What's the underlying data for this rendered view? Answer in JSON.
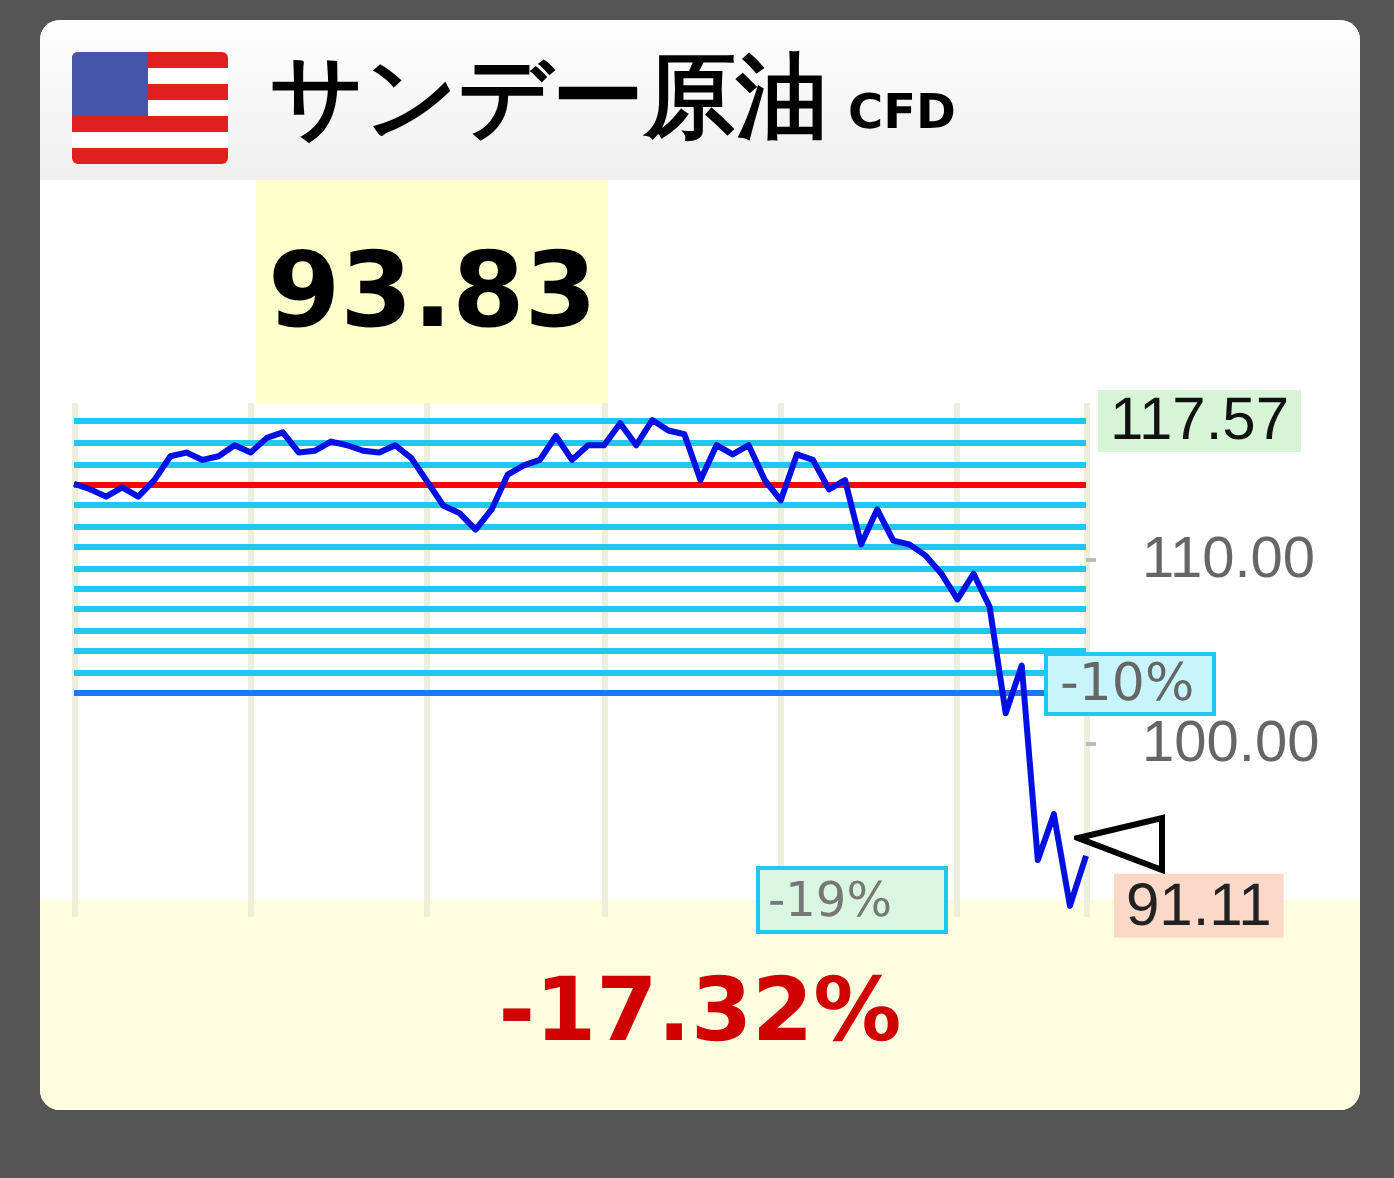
{
  "chart_data": {
    "type": "line",
    "title": "サンデー原油",
    "subtitle": "CFD",
    "categories": [
      null,
      null,
      null,
      null,
      null,
      null,
      null,
      null,
      null,
      null,
      null,
      null,
      null,
      null,
      null,
      null,
      null,
      null,
      null,
      null,
      null,
      null,
      null,
      null,
      null,
      null,
      null,
      null,
      null,
      null,
      null,
      null,
      null,
      null,
      null,
      null,
      null,
      null,
      null,
      null,
      null,
      null,
      null,
      null,
      null,
      null,
      null,
      null,
      null,
      null,
      null,
      null,
      null,
      null,
      null,
      null,
      null,
      null,
      null,
      null,
      null,
      null,
      null,
      null
    ],
    "series": [
      {
        "color": "#0010e0",
        "values": [
          114.1,
          113.8,
          113.4,
          113.9,
          113.4,
          114.3,
          115.6,
          115.8,
          115.4,
          115.6,
          116.2,
          115.8,
          116.6,
          116.9,
          115.8,
          115.9,
          116.4,
          116.2,
          115.9,
          115.8,
          116.2,
          115.5,
          114.2,
          112.9,
          112.5,
          111.6,
          112.7,
          114.6,
          115.1,
          115.4,
          116.7,
          115.4,
          116.2,
          116.2,
          117.4,
          116.2,
          117.57,
          117.0,
          116.8,
          114.3,
          116.2,
          115.7,
          116.2,
          114.3,
          113.2,
          115.7,
          115.4,
          113.8,
          114.3,
          110.8,
          112.7,
          111.0,
          110.8,
          110.2,
          109.2,
          107.8,
          109.2,
          107.4,
          101.6,
          104.2,
          93.6,
          96.1,
          91.11,
          93.83
        ],
        "value_labels": [
          null,
          null,
          null,
          null,
          null,
          null,
          null,
          null,
          null,
          null,
          null,
          null,
          null,
          null,
          null,
          null,
          null,
          null,
          null,
          null,
          null,
          null,
          null,
          null,
          null,
          null,
          null,
          null,
          null,
          null,
          null,
          null,
          null,
          null,
          null,
          null,
          null,
          null,
          null,
          null,
          null,
          null,
          null,
          null,
          null,
          null,
          null,
          null,
          null,
          null,
          null,
          null,
          null,
          null,
          null,
          null,
          null,
          null,
          null,
          null,
          null,
          null,
          "91.11",
          null
        ]
      }
    ],
    "ylim": [
      90.5,
      118.5
    ],
    "yticks": [
      {
        "value": 110,
        "label": "110.00"
      },
      {
        "value": 100,
        "label": "100.00"
      }
    ],
    "tick_labels": "y",
    "grid": "x",
    "marker": "none",
    "line_style": "solid",
    "ref_lines": [
      {
        "axis": "y",
        "value": 117.57,
        "label": "117.57",
        "color": "#1ec8f0"
      },
      {
        "axis": "y",
        "value": 116.4,
        "color": "#1ec8f0"
      },
      {
        "axis": "y",
        "value": 115.2,
        "color": "#1ec8f0"
      },
      {
        "axis": "y",
        "value": 113.0,
        "color": "#1ec8f0"
      },
      {
        "axis": "y",
        "value": 111.8,
        "color": "#1ec8f0"
      },
      {
        "axis": "y",
        "value": 110.7,
        "color": "#1ec8f0"
      },
      {
        "axis": "y",
        "value": 109.5,
        "color": "#1ec8f0"
      },
      {
        "axis": "y",
        "value": 108.4,
        "color": "#1ec8f0"
      },
      {
        "axis": "y",
        "value": 107.3,
        "color": "#1ec8f0"
      },
      {
        "axis": "y",
        "value": 106.1,
        "color": "#1ec8f0"
      },
      {
        "axis": "y",
        "value": 105.0,
        "color": "#1ec8f0"
      },
      {
        "axis": "y",
        "value": 103.8,
        "color": "#1ec8f0"
      },
      {
        "axis": "y",
        "value": 114.1,
        "color": "#ff0000"
      },
      {
        "axis": "y",
        "value": 102.7,
        "color": "#1e78f0"
      }
    ],
    "annotations": [
      "93.83",
      "-17.32%",
      "-19%",
      "-10%"
    ]
  }
}
